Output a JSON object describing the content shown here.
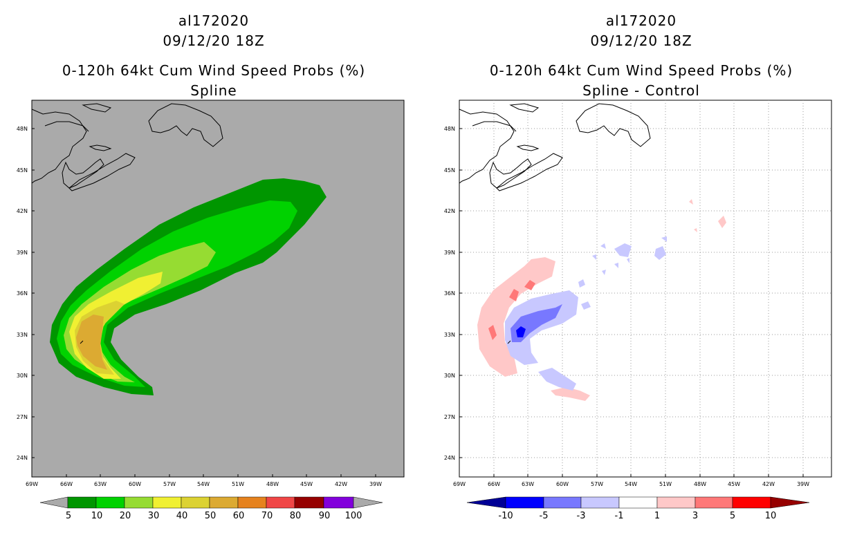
{
  "panels": [
    {
      "storm_id": "al172020",
      "datetime": "09/12/20 18Z",
      "product": "0-120h 64kt Cum Wind Speed Probs (%)",
      "subtitle": "Spline",
      "background_color": "#aaaaaa",
      "lat_labels": [
        "48N",
        "45N",
        "42N",
        "39N",
        "36N",
        "33N",
        "30N",
        "27N",
        "24N"
      ],
      "lon_labels": [
        "69W",
        "66W",
        "63W",
        "60W",
        "57W",
        "54W",
        "51W",
        "48W",
        "45W",
        "42W",
        "39W"
      ],
      "colorbar": {
        "colors": [
          "#009600",
          "#00d200",
          "#96dc32",
          "#f0f032",
          "#dcd232",
          "#dcaa32",
          "#e6821e",
          "#f04646",
          "#960000",
          "#8200dc"
        ],
        "labels": [
          "5",
          "10",
          "20",
          "30",
          "40",
          "50",
          "60",
          "70",
          "80",
          "90",
          "100"
        ],
        "end_arrow_color": "#aaaaaa"
      }
    },
    {
      "storm_id": "al172020",
      "datetime": "09/12/20 18Z",
      "product": "0-120h 64kt Cum Wind Speed Probs (%)",
      "subtitle": "Spline - Control",
      "background_color": "#ffffff",
      "lat_labels": [
        "48N",
        "45N",
        "42N",
        "39N",
        "36N",
        "33N",
        "30N",
        "27N",
        "24N"
      ],
      "lon_labels": [
        "69W",
        "66W",
        "63W",
        "60W",
        "57W",
        "54W",
        "51W",
        "48W",
        "45W",
        "42W",
        "39W"
      ],
      "colorbar": {
        "colors": [
          "#0000ff",
          "#7878ff",
          "#c8c8ff",
          "#ffffff",
          "#ffc8c8",
          "#ff7878",
          "#ff0000"
        ],
        "labels": [
          "-10",
          "-5",
          "-3",
          "-1",
          "1",
          "3",
          "5",
          "10"
        ],
        "left_arrow_color": "#000096",
        "right_arrow_color": "#960000"
      }
    }
  ]
}
